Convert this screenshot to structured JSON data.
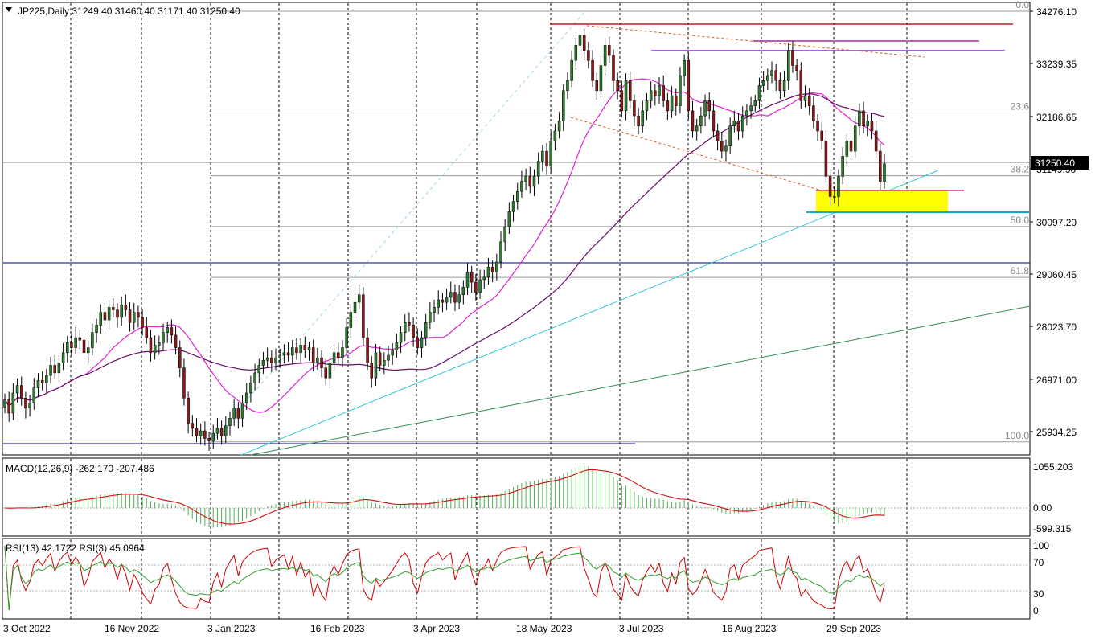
{
  "chart_data": {
    "type": "candlestick",
    "symbol": "JP225",
    "timeframe": "Daily",
    "ohlc_header": {
      "label": "JP225,Daily",
      "open": "31249.40",
      "high": "31460.40",
      "low": "31171.40",
      "close": "31250.40"
    },
    "current_price": "31250.40",
    "price_axis": {
      "ticks": [
        "34276.10",
        "33239.35",
        "32186.65",
        "31149.90",
        "30097.20",
        "29060.45",
        "28023.70",
        "26971.00",
        "25934.25"
      ],
      "range": [
        25480,
        34430
      ]
    },
    "date_axis": {
      "labels": [
        "3 Oct 2022",
        "16 Nov 2022",
        "3 Jan 2023",
        "16 Feb 2023",
        "3 Apr 2023",
        "18 May 2023",
        "3 Jul 2023",
        "16 Aug 2023",
        "29 Sep 2023"
      ]
    },
    "fibonacci": {
      "levels": [
        "0.0",
        "23.6",
        "38.2",
        "50.0",
        "61.8",
        "100.0"
      ],
      "price_100": 25730,
      "price_0": 34276
    },
    "closes": [
      26570,
      26300,
      26700,
      26850,
      26600,
      26400,
      26500,
      26800,
      26950,
      26900,
      27050,
      27250,
      27100,
      27300,
      27500,
      27700,
      27600,
      27800,
      27750,
      27500,
      27600,
      27900,
      28050,
      28300,
      28150,
      28400,
      28350,
      28200,
      28450,
      28350,
      28100,
      28300,
      28200,
      28000,
      27800,
      27500,
      27650,
      27700,
      27900,
      28000,
      27850,
      27600,
      27200,
      26600,
      26100,
      26000,
      25850,
      25950,
      25800,
      25750,
      25900,
      26000,
      25850,
      26050,
      26200,
      26400,
      26200,
      26500,
      26700,
      26900,
      27100,
      27250,
      27350,
      27400,
      27300,
      27400,
      27450,
      27500,
      27450,
      27600,
      27500,
      27650,
      27550,
      27600,
      27300,
      27400,
      27200,
      27000,
      27300,
      27500,
      27400,
      27600,
      28000,
      28300,
      28500,
      28650,
      27800,
      27300,
      27000,
      27500,
      27250,
      27350,
      27450,
      27550,
      27700,
      27900,
      28100,
      28050,
      27800,
      27600,
      27800,
      28100,
      28300,
      28400,
      28550,
      28500,
      28600,
      28700,
      28500,
      28650,
      28800,
      29100,
      28900,
      28700,
      28950,
      29000,
      29200,
      29100,
      29300,
      29700,
      30000,
      30300,
      30500,
      30700,
      30900,
      31000,
      30800,
      31000,
      31300,
      31500,
      31200,
      31700,
      31900,
      32100,
      32700,
      32900,
      33300,
      33600,
      33800,
      33500,
      33300,
      32900,
      32700,
      33200,
      33600,
      33400,
      32900,
      32700,
      32300,
      32900,
      32500,
      32200,
      32000,
      32300,
      32500,
      32700,
      32600,
      32800,
      32500,
      32300,
      32600,
      32400,
      33000,
      33300,
      32300,
      31900,
      32000,
      32200,
      32500,
      32300,
      31900,
      31700,
      31500,
      31600,
      32000,
      32100,
      31900,
      32200,
      32300,
      32400,
      32500,
      32800,
      32900,
      33000,
      33100,
      32900,
      32700,
      32900,
      33500,
      33200,
      33100,
      32500,
      32600,
      32400,
      32100,
      31900,
      31700,
      31000,
      30600,
      30600,
      31000,
      31400,
      31700,
      31500,
      32000,
      32300,
      32000,
      32100,
      31900,
      31500,
      30900,
      31250
    ]
  }
}
